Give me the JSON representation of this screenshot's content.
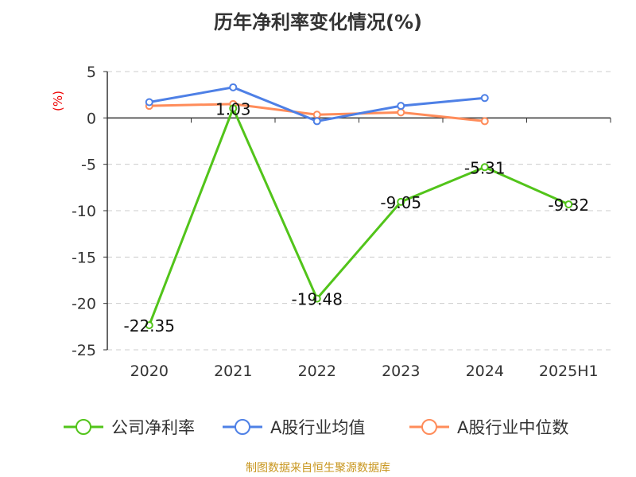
{
  "chart_data": {
    "type": "line",
    "title": "历年净利率变化情况(%)",
    "ylabel": "(%)",
    "categories": [
      "2020",
      "2021",
      "2022",
      "2023",
      "2024",
      "2025H1"
    ],
    "ylim": [
      -25,
      5
    ],
    "yticks": [
      5,
      0,
      -5,
      -10,
      -15,
      -20,
      -25
    ],
    "grid": true,
    "legend_position": "bottom",
    "series": [
      {
        "name": "公司净利率",
        "color": "#52c41a",
        "values": [
          -22.35,
          1.03,
          -19.48,
          -9.05,
          -5.31,
          -9.32
        ],
        "labels": [
          "-22.35",
          "1.03",
          "-19.48",
          "-9.05",
          "-5.31",
          "-9.32"
        ]
      },
      {
        "name": "A股行业均值",
        "color": "#4e80e6",
        "values": [
          1.7,
          3.3,
          -0.35,
          1.3,
          2.15,
          null
        ]
      },
      {
        "name": "A股行业中位数",
        "color": "#ff8c5a",
        "values": [
          1.3,
          1.5,
          0.35,
          0.6,
          -0.35,
          null
        ]
      }
    ]
  },
  "source": "制图数据来自恒生聚源数据库"
}
